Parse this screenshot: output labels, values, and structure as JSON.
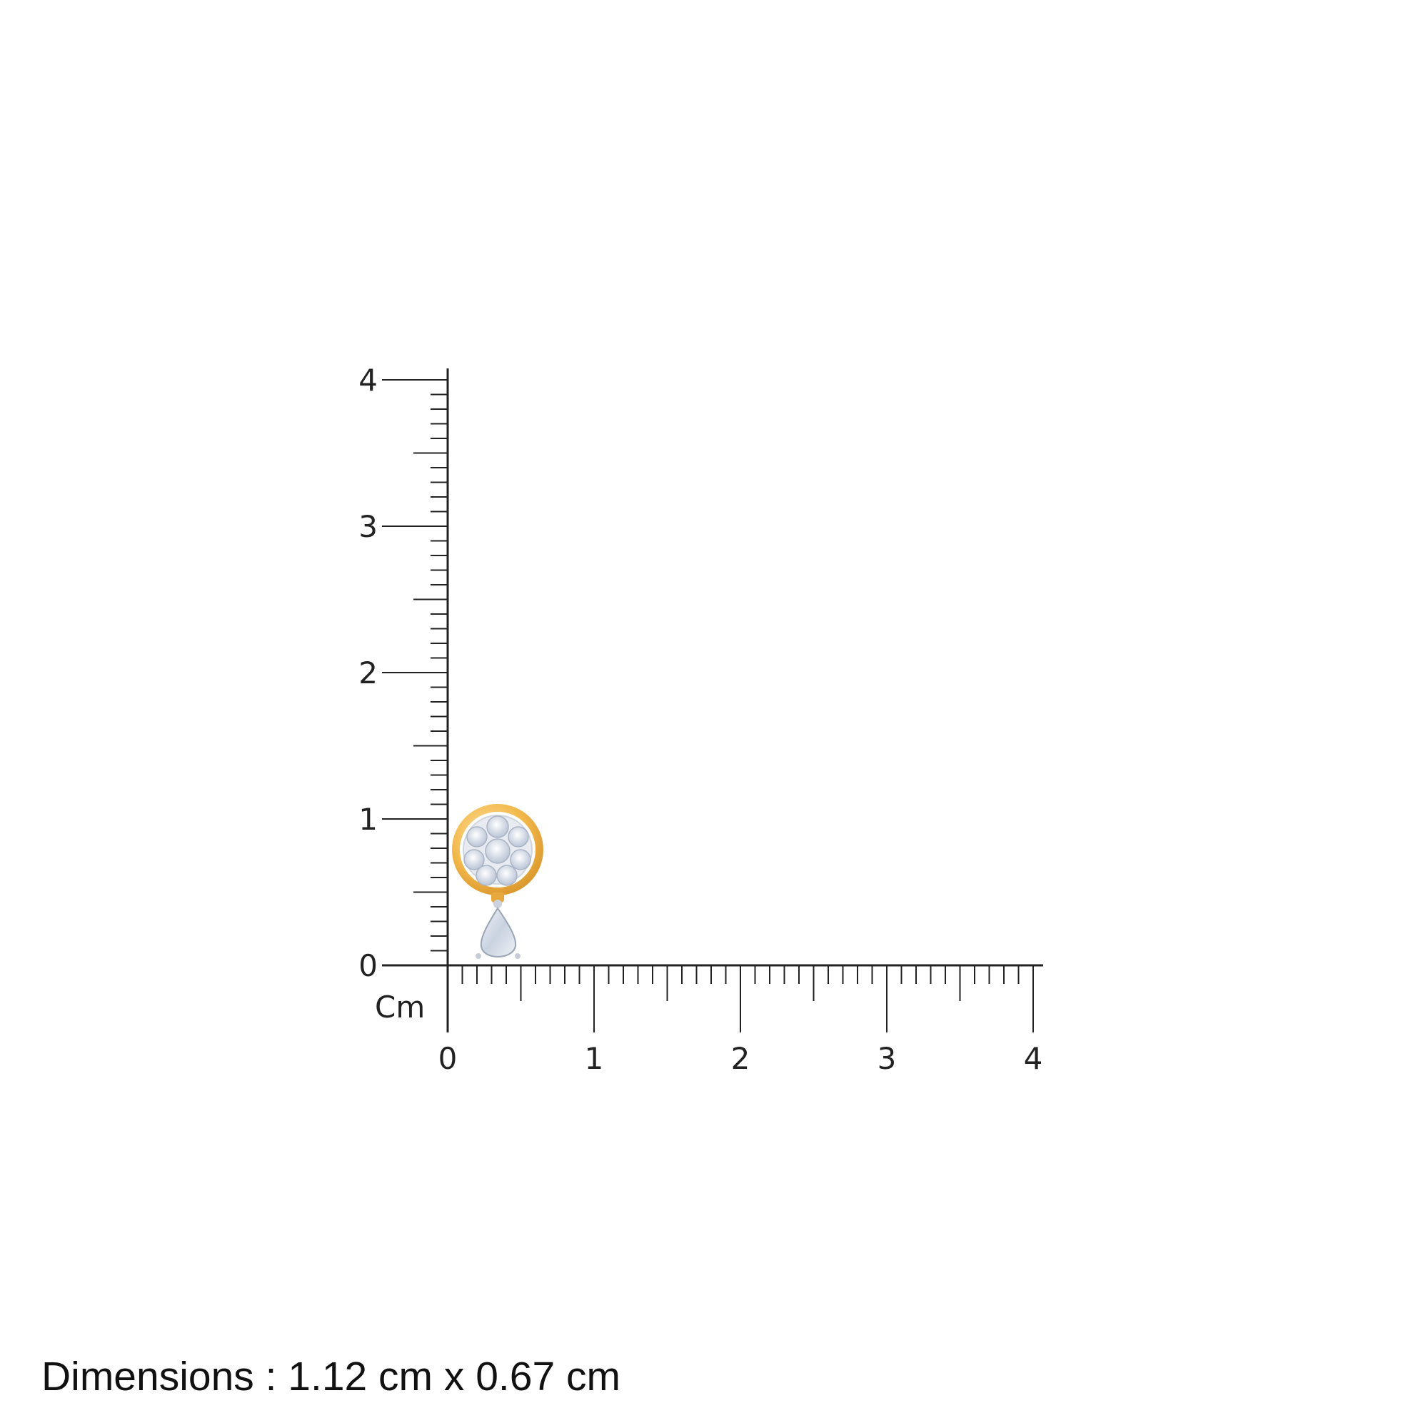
{
  "ruler": {
    "unit_label": "Cm",
    "x_ticks": [
      "0",
      "1",
      "2",
      "3",
      "4"
    ],
    "y_ticks": [
      "0",
      "1",
      "2",
      "3",
      "4"
    ],
    "range_cm": [
      0,
      4
    ],
    "minor_step_cm": 0.1,
    "line_color": "#222222"
  },
  "product": {
    "metal_color": "#F2B84B",
    "stone_color": "#DDE3EE"
  },
  "dimensions_text": "Dimensions : 1.12 cm x 0.67 cm"
}
